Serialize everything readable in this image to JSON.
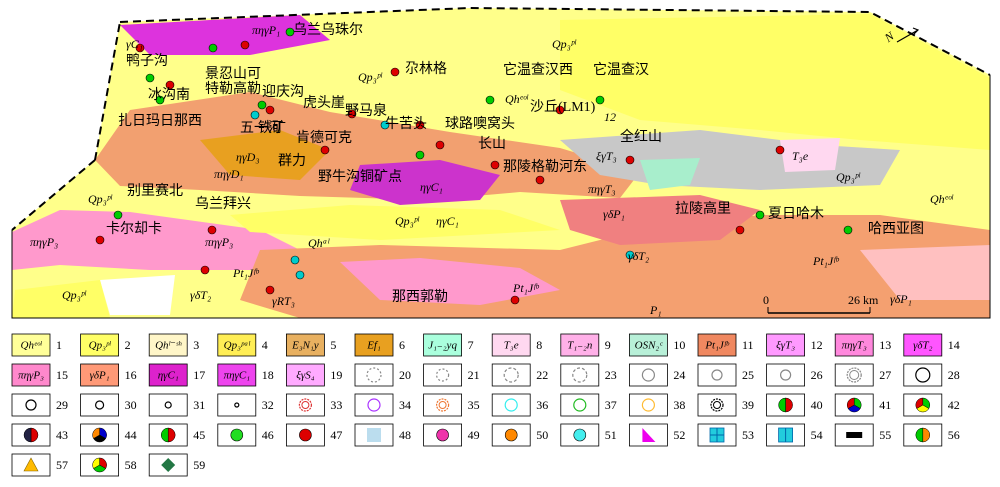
{
  "map": {
    "north": "N",
    "scale": {
      "start": "0",
      "end": "26 km"
    },
    "labels": [
      "πηγP₁",
      "乌兰乌珠尔",
      "γC₁",
      "鸭子沟",
      "景忍山可",
      "特勒高勒",
      "冰沟南",
      "迎庆沟",
      "虎头崖",
      "野马泉",
      "扎日玛日那西",
      "五一河",
      "铁矿",
      "肯德可克",
      "牛苦头",
      "球路噢窝头",
      "长山",
      "尕林格",
      "Qp₃ᵖˡ",
      "Qp₃ᵖˡ",
      "它温查汉西",
      "它温查汉",
      "Qhᵉᵒˡ",
      "沙丘(LM1)",
      "12",
      "全红山",
      "ξγT₃",
      "T₃e",
      "Qp₃ᵖˡ",
      "Qhᵉᵒˡ",
      "ηγD₃",
      "群力",
      "πηγD₁",
      "野牛沟铜矿点",
      "ηγC₁",
      "那陵格勒河东",
      "πηγT₃",
      "拉陵高里",
      "γδP₁",
      "夏日哈木",
      "哈西亚图",
      "别里赛北",
      "Qp₃ᵖˡ",
      "乌兰拜兴",
      "卡尔却卡",
      "πηγP₃",
      "πηγP₃",
      "Qp₃ᵖˡ",
      "ηγC₁",
      "Qhᵃˡ",
      "γδT₂",
      "Pt₁Jᶠᵇ",
      "Pt₁Jᶠᵇ",
      "Pt₁Jᶠᵇ",
      "γδT₂",
      "γRT₃",
      "那西郭勒",
      "Qp₃ᵖˡ",
      "P₁",
      "γδP₁"
    ]
  },
  "legend": [
    {
      "number": 1,
      "label": "Qhᵉᵒˡ"
    },
    {
      "number": 2,
      "label": "Qp₃ᵖˡ"
    },
    {
      "number": 3,
      "label": "Qhˡ⁻ˢʰ"
    },
    {
      "number": 4,
      "label": "Qp₃ᵖᵃˡ"
    },
    {
      "number": 5,
      "label": "E₃N₁y"
    },
    {
      "number": 6,
      "label": "Ef₁"
    },
    {
      "number": 7,
      "label": "J₁₋₂yq"
    },
    {
      "number": 8,
      "label": "T₃e"
    },
    {
      "number": 9,
      "label": "T₁₋₂n"
    },
    {
      "number": 10,
      "label": "OSN₂ᶜ"
    },
    {
      "number": 11,
      "label": "Pt₁Jᶠᵇ"
    },
    {
      "number": 12,
      "label": "ξγT₃"
    },
    {
      "number": 13,
      "label": "πηγT₃"
    },
    {
      "number": 14,
      "label": "γδT₂"
    },
    {
      "number": 15,
      "label": "πηγP₃"
    },
    {
      "number": 16,
      "label": "γδP₁"
    },
    {
      "number": 17,
      "label": "ηγC₁"
    },
    {
      "number": 18,
      "label": "πηγC₁"
    },
    {
      "number": 19,
      "label": "ξγS₄"
    },
    {
      "number": 20
    },
    {
      "number": 21
    },
    {
      "number": 22
    },
    {
      "number": 23
    },
    {
      "number": 24
    },
    {
      "number": 25
    },
    {
      "number": 26
    },
    {
      "number": 27
    },
    {
      "number": 28
    },
    {
      "number": 29
    },
    {
      "number": 30
    },
    {
      "number": 31
    },
    {
      "number": 32
    },
    {
      "number": 33
    },
    {
      "number": 34
    },
    {
      "number": 35
    },
    {
      "number": 36
    },
    {
      "number": 37
    },
    {
      "number": 38
    },
    {
      "number": 39
    },
    {
      "number": 40
    },
    {
      "number": 41
    },
    {
      "number": 42
    },
    {
      "number": 43
    },
    {
      "number": 44
    },
    {
      "number": 45
    },
    {
      "number": 46
    },
    {
      "number": 47
    },
    {
      "number": 48
    },
    {
      "number": 49
    },
    {
      "number": 50
    },
    {
      "number": 51
    },
    {
      "number": 52
    },
    {
      "number": 53
    },
    {
      "number": 54
    },
    {
      "number": 55
    },
    {
      "number": 56
    },
    {
      "number": 57
    },
    {
      "number": 58
    },
    {
      "number": 59
    }
  ]
}
